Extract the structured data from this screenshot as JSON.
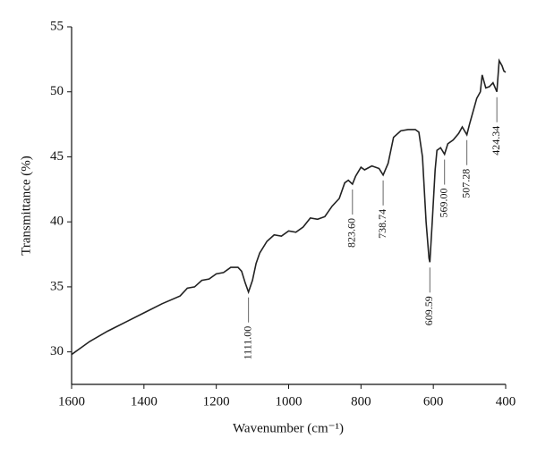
{
  "chart_data": {
    "type": "line",
    "xlabel": "Wavenumber (cm⁻¹)",
    "ylabel": "Transmittance (%)",
    "x": [
      1600,
      1580,
      1550,
      1500,
      1450,
      1400,
      1350,
      1300,
      1280,
      1260,
      1240,
      1220,
      1200,
      1180,
      1160,
      1140,
      1130,
      1120,
      1111,
      1100,
      1090,
      1080,
      1060,
      1040,
      1020,
      1000,
      980,
      960,
      940,
      920,
      900,
      880,
      860,
      845,
      835,
      823.6,
      815,
      800,
      790,
      770,
      750,
      738.74,
      725,
      710,
      690,
      670,
      650,
      640,
      630,
      620,
      612,
      609.59,
      603,
      595,
      590,
      580,
      569,
      560,
      545,
      530,
      520,
      507.28,
      500,
      490,
      480,
      470,
      465,
      455,
      445,
      435,
      424.34,
      418,
      410,
      405,
      400
    ],
    "values": [
      29.8,
      30.2,
      30.8,
      31.6,
      32.3,
      33.0,
      33.7,
      34.3,
      34.9,
      35.0,
      35.5,
      35.6,
      36.0,
      36.1,
      36.5,
      36.5,
      36.2,
      35.3,
      34.6,
      35.5,
      36.8,
      37.6,
      38.5,
      39.0,
      38.9,
      39.3,
      39.2,
      39.6,
      40.3,
      40.2,
      40.4,
      41.2,
      41.8,
      43.0,
      43.2,
      42.9,
      43.5,
      44.2,
      44.0,
      44.3,
      44.1,
      43.6,
      44.5,
      46.5,
      47.0,
      47.1,
      47.1,
      46.9,
      45.0,
      40.0,
      37.2,
      36.9,
      40.0,
      44.0,
      45.5,
      45.7,
      45.2,
      46.0,
      46.3,
      46.8,
      47.3,
      46.7,
      47.5,
      48.5,
      49.5,
      50.0,
      51.3,
      50.3,
      50.4,
      50.7,
      50.0,
      52.4,
      52.0,
      51.6,
      51.5
    ],
    "color": "#222222",
    "xlim": [
      1600,
      400
    ],
    "xticks": [
      1600,
      1400,
      1200,
      1000,
      800,
      600,
      400
    ],
    "ylim": [
      27.5,
      55
    ],
    "yticks": [
      30,
      35,
      40,
      45,
      50,
      55
    ],
    "annotations": [
      {
        "x": 1111.0,
        "y": 34.6,
        "label": "1111.00"
      },
      {
        "x": 823.6,
        "y": 42.9,
        "label": "823.60"
      },
      {
        "x": 738.74,
        "y": 43.6,
        "label": "738.74"
      },
      {
        "x": 609.59,
        "y": 36.9,
        "label": "609.59"
      },
      {
        "x": 569.0,
        "y": 45.2,
        "label": "569.00"
      },
      {
        "x": 507.28,
        "y": 46.7,
        "label": "507.28"
      },
      {
        "x": 424.34,
        "y": 50.0,
        "label": "424.34"
      }
    ]
  }
}
